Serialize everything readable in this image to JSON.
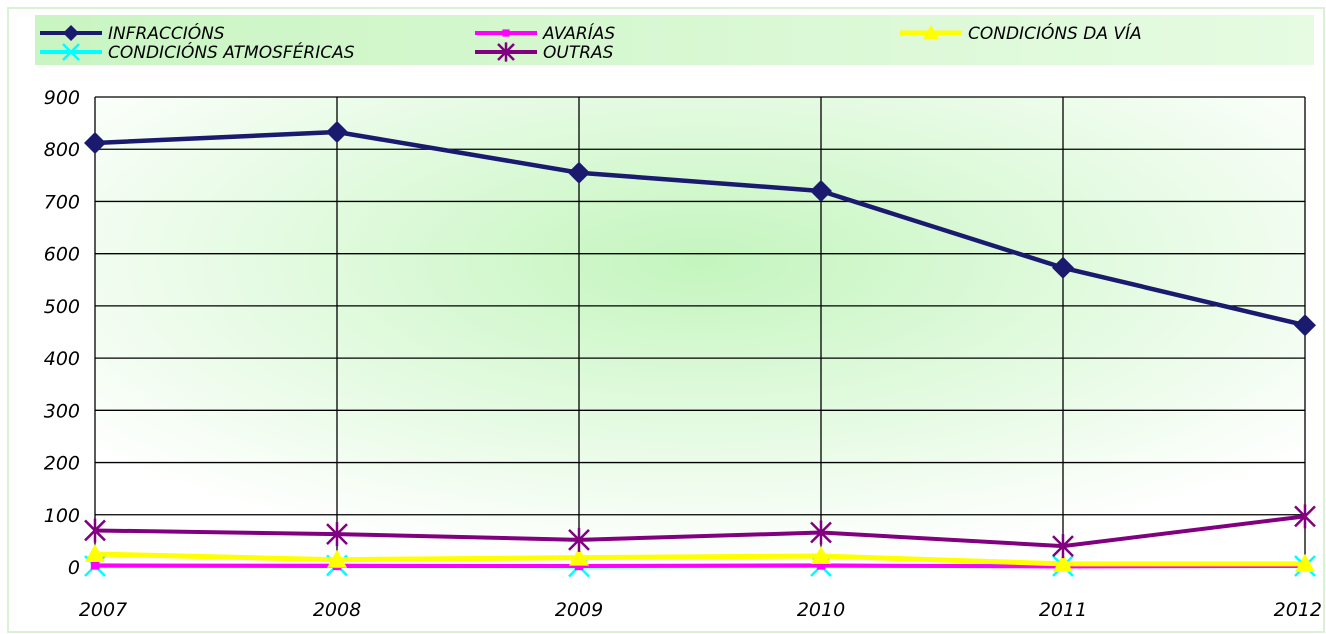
{
  "chart_data": {
    "type": "line",
    "x": [
      "2007",
      "2008",
      "2009",
      "2010",
      "2011",
      "2012"
    ],
    "ylim": [
      0,
      900
    ],
    "yticks": [
      "0",
      "100",
      "200",
      "300",
      "400",
      "500",
      "600",
      "700",
      "800",
      "900"
    ],
    "grid": true,
    "legend_position": "top",
    "series": [
      {
        "name": "INFRACCIÓNS",
        "color": "#1a1a6e",
        "marker": "diamond",
        "values": [
          812,
          833,
          755,
          720,
          573,
          463
        ]
      },
      {
        "name": "AVARÍAS",
        "color": "#ff00ff",
        "marker": "square",
        "values": [
          3,
          2,
          2,
          3,
          1,
          2
        ]
      },
      {
        "name": "CONDICIÓNS DA VÍA",
        "color": "#ffff00",
        "marker": "triangle",
        "values": [
          25,
          14,
          18,
          21,
          6,
          6
        ]
      },
      {
        "name": "CONDICIÓNS ATMOSFÉRICAS",
        "color": "#00ffff",
        "marker": "x",
        "values": [
          2,
          3,
          1,
          2,
          2,
          2
        ]
      },
      {
        "name": "OUTRAS",
        "color": "#800080",
        "marker": "asterisk",
        "values": [
          70,
          63,
          52,
          66,
          40,
          97
        ]
      }
    ]
  }
}
